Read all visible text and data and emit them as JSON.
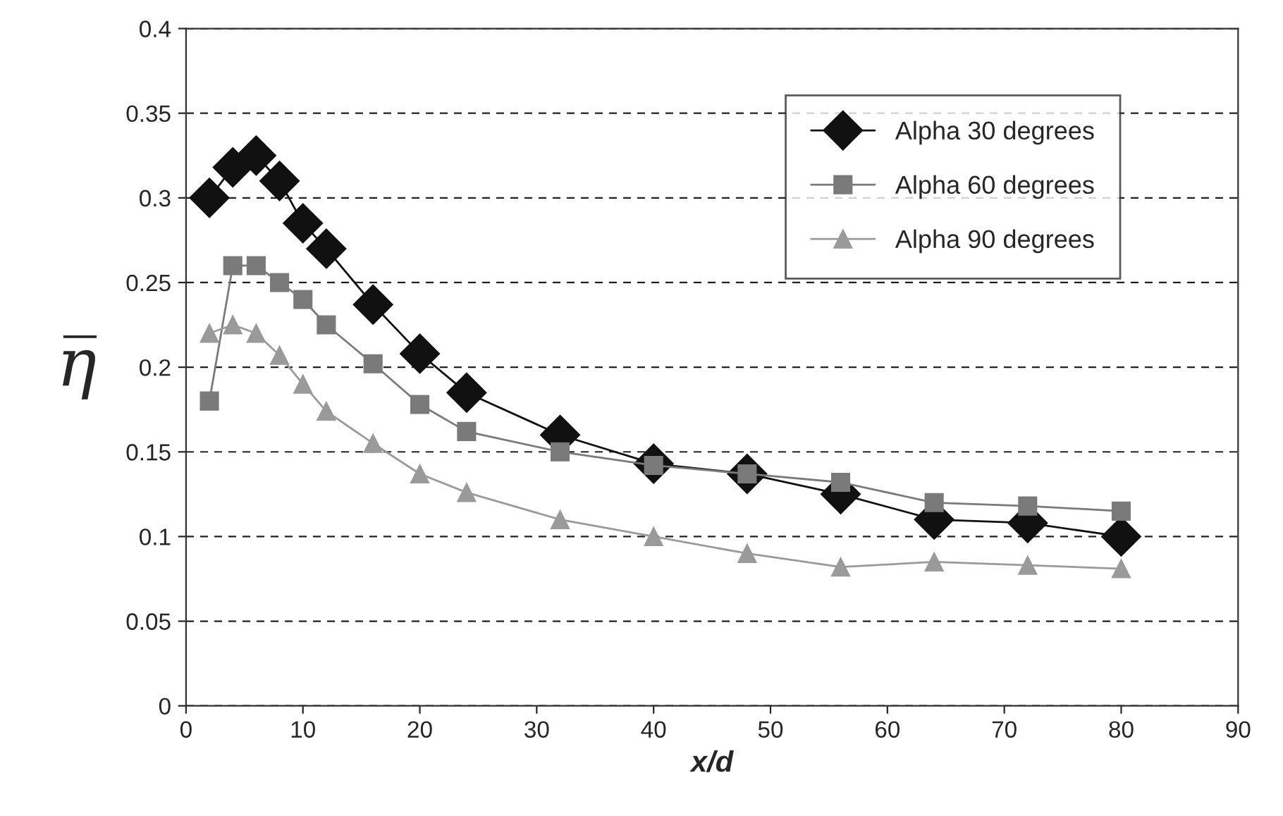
{
  "chart_data": {
    "type": "line",
    "xlabel": "x/d",
    "ylabel": "η̅",
    "x": [
      2,
      4,
      6,
      8,
      10,
      12,
      16,
      20,
      24,
      32,
      40,
      48,
      56,
      64,
      72,
      80
    ],
    "series": [
      {
        "name": "Alpha 30 degrees",
        "color": "#111111",
        "marker": "diamond",
        "values": [
          0.3,
          0.318,
          0.325,
          0.31,
          0.285,
          0.27,
          0.237,
          0.208,
          0.185,
          0.16,
          0.143,
          0.137,
          0.125,
          0.11,
          0.108,
          0.1
        ]
      },
      {
        "name": "Alpha 60 degrees",
        "color": "#7a7a7a",
        "marker": "square",
        "values": [
          0.18,
          0.26,
          0.26,
          0.25,
          0.24,
          0.225,
          0.202,
          0.178,
          0.162,
          0.15,
          0.142,
          0.137,
          0.132,
          0.12,
          0.118,
          0.115
        ]
      },
      {
        "name": "Alpha 90 degrees",
        "color": "#9a9a9a",
        "marker": "triangle",
        "values": [
          0.22,
          0.225,
          0.22,
          0.207,
          0.19,
          0.174,
          0.155,
          0.137,
          0.126,
          0.11,
          0.1,
          0.09,
          0.082,
          0.085,
          0.083,
          0.081
        ]
      }
    ],
    "xlim": [
      0,
      90
    ],
    "xticks": [
      0,
      10,
      20,
      30,
      40,
      50,
      60,
      70,
      80,
      90
    ],
    "ylim": [
      0,
      0.4
    ],
    "yticks": [
      0,
      0.05,
      0.1,
      0.15,
      0.2,
      0.25,
      0.3,
      0.35,
      0.4
    ],
    "grid": "y",
    "legend": "top right",
    "line_style": "solid"
  }
}
